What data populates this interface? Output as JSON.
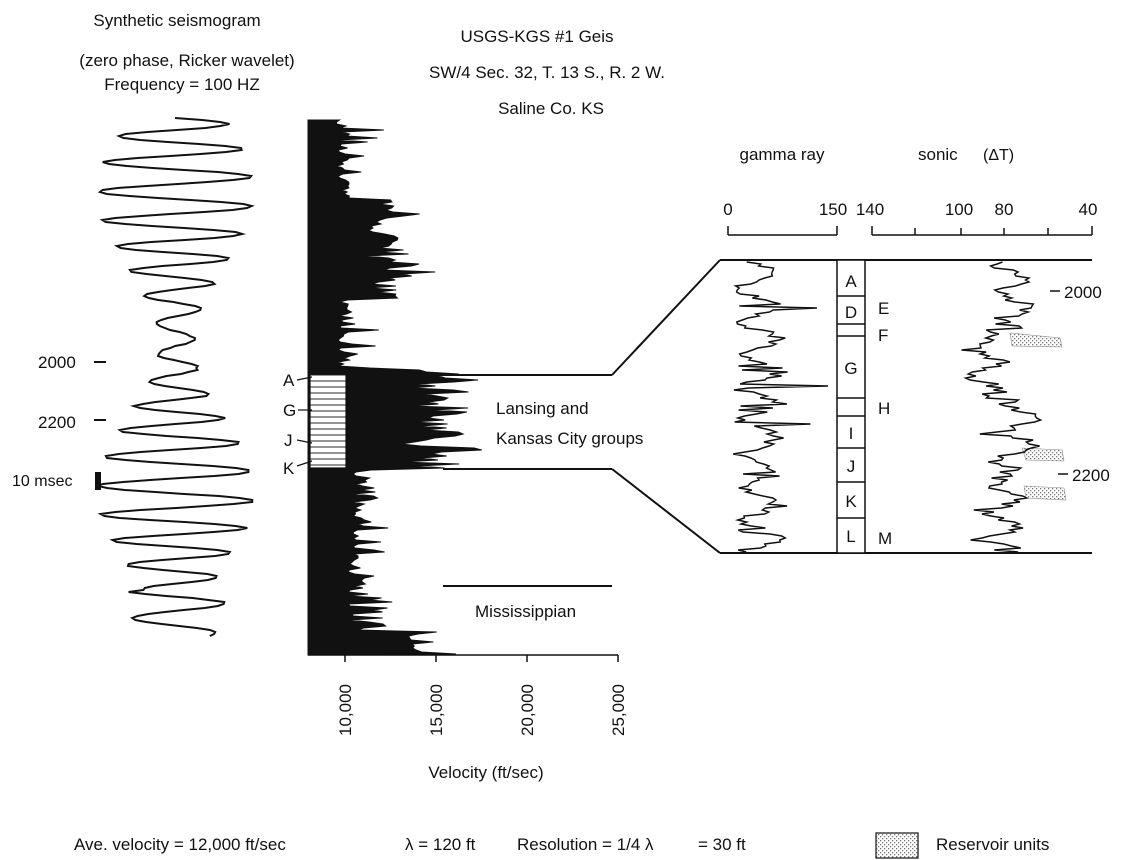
{
  "seismogram": {
    "title": "Synthetic seismogram",
    "subtitle": "(zero phase, Ricker wavelet)",
    "frequency": "Frequency = 100 HZ",
    "depth_labels": [
      "2000",
      "2200"
    ],
    "scale_bar_label": "10 msec"
  },
  "well": {
    "name": "USGS-KGS #1 Geis",
    "location": "SW/4 Sec. 32, T. 13 S., R. 2 W.",
    "county": "Saline Co. KS"
  },
  "velocity_log": {
    "xlabel": "Velocity (ft/sec)",
    "tick_labels": [
      "10,000",
      "15,000",
      "20,000",
      "25,000"
    ],
    "markers": [
      "A",
      "G",
      "J",
      "K"
    ]
  },
  "units": {
    "lansing_kc": "Lansing and",
    "lansing_kc_2": "Kansas City groups",
    "mississippian": "Mississippian"
  },
  "gamma_ray": {
    "title": "gamma ray",
    "tick_labels": [
      "0",
      "150"
    ]
  },
  "sonic": {
    "title": "sonic",
    "unit": "(ΔT)",
    "tick_labels": [
      "140",
      "100",
      "80",
      "40"
    ]
  },
  "zones": {
    "left_column": [
      "A",
      "D",
      "G",
      "I",
      "J",
      "K",
      "L"
    ],
    "right_labels": [
      "E",
      "F",
      "H",
      "M"
    ]
  },
  "log_depths": [
    "2000",
    "2200"
  ],
  "footer": {
    "ave_velocity": "Ave. velocity = 12,000 ft/sec",
    "wavelength": "λ = 120 ft",
    "resolution": "Resolution = 1/4 λ",
    "resolution_value": "= 30 ft",
    "legend_label": "Reservoir units"
  }
}
